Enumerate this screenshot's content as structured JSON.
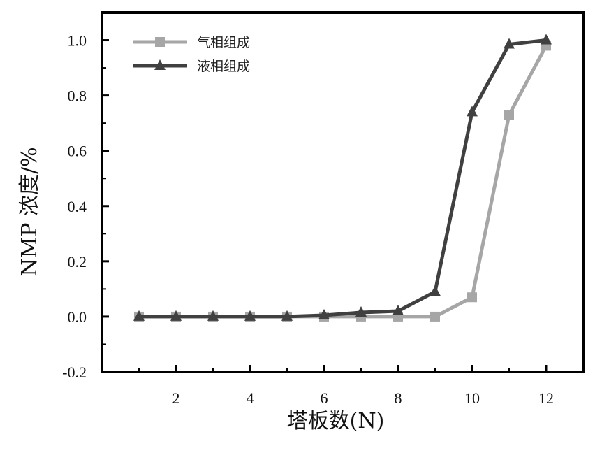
{
  "chart_data": {
    "type": "line",
    "xlabel": "塔板数(N)",
    "ylabel": "NMP 浓度/%",
    "xlim": [
      0,
      13
    ],
    "ylim": [
      -0.2,
      1.1
    ],
    "xticks": [
      2,
      4,
      6,
      8,
      10,
      12
    ],
    "xtick_labels": [
      "2",
      "4",
      "6",
      "8",
      "10",
      "12"
    ],
    "yticks": [
      -0.2,
      0.0,
      0.2,
      0.4,
      0.6,
      0.8,
      1.0
    ],
    "ytick_labels": [
      "-0.2",
      "0.0",
      "0.2",
      "0.4",
      "0.6",
      "0.8",
      "1.0"
    ],
    "grid": false,
    "legend_position": "top-left",
    "x": [
      1,
      2,
      3,
      4,
      5,
      6,
      7,
      8,
      9,
      10,
      11,
      12
    ],
    "series": [
      {
        "name": "气相组成",
        "marker": "square",
        "color": "#a6a6a6",
        "values": [
          0.0,
          0.0,
          0.0,
          0.0,
          0.0,
          0.0,
          0.0,
          0.0,
          0.0,
          0.07,
          0.73,
          0.98
        ]
      },
      {
        "name": "液相组成",
        "marker": "triangle",
        "color": "#404040",
        "values": [
          0.0,
          0.0,
          0.0,
          0.0,
          0.0,
          0.005,
          0.015,
          0.02,
          0.09,
          0.74,
          0.985,
          1.0
        ]
      }
    ]
  }
}
